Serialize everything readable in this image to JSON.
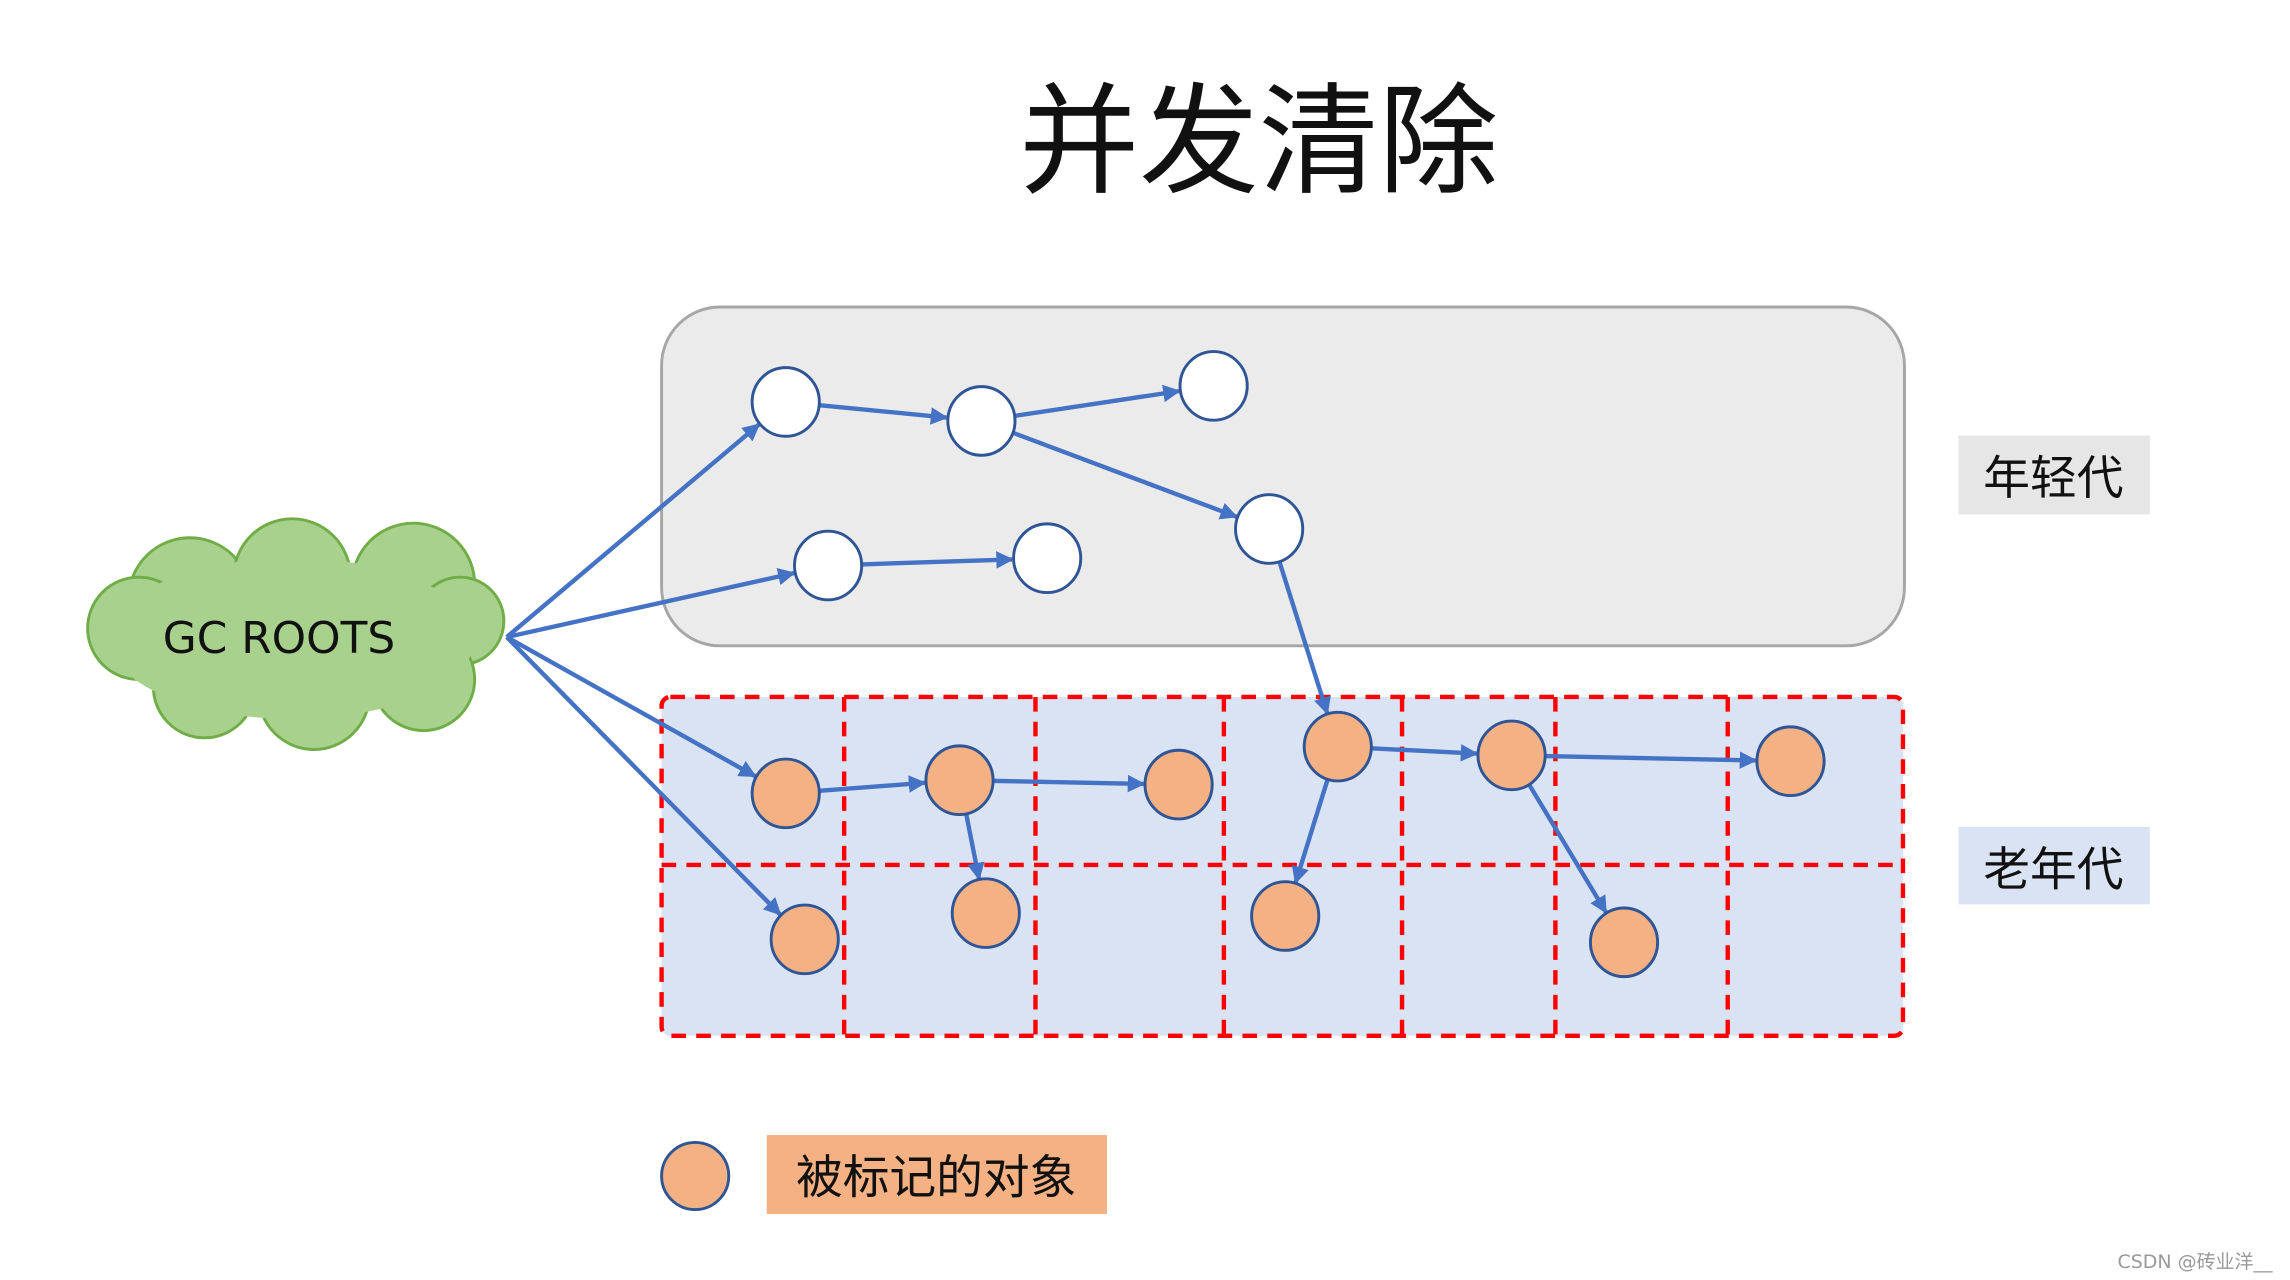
{
  "title": "并发清除",
  "gc_roots_label": "GC ROOTS",
  "young_gen_label": "年轻代",
  "old_gen_label": "老年代",
  "legend": {
    "label": "被标记的对象"
  },
  "watermark": "CSDN @砖业洋__",
  "colors": {
    "edge": "#4472c4",
    "node_stroke": "#2f5597",
    "marked_fill": "#f4b183",
    "unmarked_fill": "#ffffff",
    "young_bg": "#ebebeb",
    "old_bg": "#dae3f3",
    "region_border": "#ff0000",
    "cloud_fill": "#a9d18e"
  },
  "nodes": [
    {
      "id": "A",
      "generation": "young",
      "marked": false
    },
    {
      "id": "B",
      "generation": "young",
      "marked": false
    },
    {
      "id": "C",
      "generation": "young",
      "marked": false
    },
    {
      "id": "D",
      "generation": "young",
      "marked": false
    },
    {
      "id": "E",
      "generation": "young",
      "marked": false
    },
    {
      "id": "F",
      "generation": "young",
      "marked": false
    },
    {
      "id": "O1",
      "generation": "old",
      "marked": true
    },
    {
      "id": "O2",
      "generation": "old",
      "marked": true
    },
    {
      "id": "O3",
      "generation": "old",
      "marked": true
    },
    {
      "id": "O4",
      "generation": "old",
      "marked": true
    },
    {
      "id": "O5",
      "generation": "old",
      "marked": true
    },
    {
      "id": "O6",
      "generation": "old",
      "marked": true
    },
    {
      "id": "O7",
      "generation": "old",
      "marked": true
    },
    {
      "id": "O8",
      "generation": "old",
      "marked": true
    },
    {
      "id": "O9",
      "generation": "old",
      "marked": true
    },
    {
      "id": "O10",
      "generation": "old",
      "marked": true
    }
  ],
  "edges": [
    [
      "ROOT",
      "A"
    ],
    [
      "ROOT",
      "E"
    ],
    [
      "ROOT",
      "O1"
    ],
    [
      "ROOT",
      "O7"
    ],
    [
      "A",
      "B"
    ],
    [
      "B",
      "C"
    ],
    [
      "B",
      "D"
    ],
    [
      "E",
      "F"
    ],
    [
      "D",
      "O4"
    ],
    [
      "O1",
      "O2"
    ],
    [
      "O2",
      "O3"
    ],
    [
      "O2",
      "O8"
    ],
    [
      "O4",
      "O5"
    ],
    [
      "O4",
      "O9"
    ],
    [
      "O5",
      "O6"
    ],
    [
      "O5",
      "O10"
    ]
  ]
}
